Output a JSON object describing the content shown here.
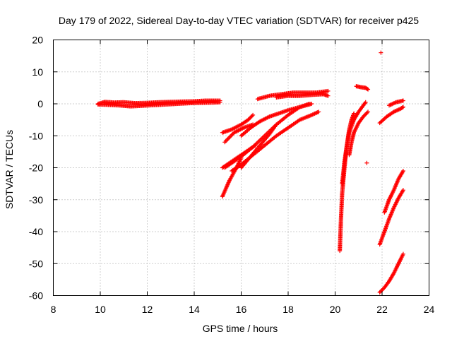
{
  "chart_data": {
    "type": "scatter",
    "title": "Day 179 of 2022, Sidereal Day-to-day VTEC variation (SDTVAR) for receiver p425",
    "xlabel": "GPS time / hours",
    "ylabel": "SDTVAR / TECUs",
    "xlim": [
      8,
      24
    ],
    "ylim": [
      -60,
      20
    ],
    "x_ticks": [
      8,
      10,
      12,
      14,
      16,
      18,
      20,
      22,
      24
    ],
    "y_ticks": [
      -60,
      -50,
      -40,
      -30,
      -20,
      -10,
      0,
      10,
      20
    ],
    "x_tick_labels": [
      "8",
      "10",
      "12",
      "14",
      "16",
      "18",
      "20",
      "22",
      "24"
    ],
    "y_tick_labels": [
      "-60",
      "-50",
      "-40",
      "-30",
      "-20",
      "-10",
      "0",
      "10",
      "20"
    ],
    "grid": true,
    "marker": "+",
    "color": "#ff0000",
    "series": [
      {
        "x": [
          9.9,
          10.2,
          10.6,
          11.0,
          11.5,
          12.0,
          12.5,
          13.0,
          13.5,
          14.0,
          14.5,
          15.1
        ],
        "y": [
          0.0,
          0.6,
          0.4,
          0.5,
          0.2,
          0.3,
          0.5,
          0.6,
          0.7,
          0.8,
          1.0,
          1.0
        ]
      },
      {
        "x": [
          9.9,
          10.3,
          10.8,
          11.3,
          11.8,
          12.3,
          12.8,
          13.3,
          13.8,
          14.3,
          14.8,
          15.1
        ],
        "y": [
          -0.2,
          -0.3,
          -0.5,
          -0.8,
          -0.6,
          -0.4,
          -0.2,
          0.0,
          0.2,
          0.3,
          0.4,
          0.5
        ]
      },
      {
        "x": [
          15.2,
          15.6,
          16.0,
          16.3,
          16.5
        ],
        "y": [
          -9.0,
          -8.0,
          -6.5,
          -5.0,
          -3.5
        ]
      },
      {
        "x": [
          15.2,
          15.6,
          16.0,
          16.3,
          16.6
        ],
        "y": [
          -20.0,
          -18.0,
          -16.0,
          -14.5,
          -13.0
        ]
      },
      {
        "x": [
          15.2,
          15.5,
          15.8,
          16.0
        ],
        "y": [
          -29.0,
          -24.0,
          -20.0,
          -17.0
        ]
      },
      {
        "x": [
          15.3,
          15.6,
          16.0,
          16.5,
          17.0,
          17.5,
          18.0,
          18.5,
          18.9
        ],
        "y": [
          -20.0,
          -18.5,
          -16.5,
          -13.5,
          -10.0,
          -6.5,
          -3.5,
          -1.0,
          0.0
        ]
      },
      {
        "x": [
          15.6,
          16.0,
          16.5,
          17.0,
          17.5,
          18.0,
          18.5,
          19.0,
          19.3
        ],
        "y": [
          -21.0,
          -19.0,
          -16.0,
          -13.0,
          -10.0,
          -7.5,
          -5.0,
          -3.5,
          -2.5
        ]
      },
      {
        "x": [
          16.0,
          16.4,
          16.8,
          17.2,
          17.6,
          18.0,
          18.5,
          19.0
        ],
        "y": [
          -10.0,
          -7.5,
          -5.5,
          -4.0,
          -3.0,
          -2.0,
          -1.0,
          0.0
        ]
      },
      {
        "x": [
          16.0,
          16.4,
          16.8,
          17.2,
          17.5
        ],
        "y": [
          -20.0,
          -16.5,
          -13.0,
          -9.5,
          -6.5
        ]
      },
      {
        "x": [
          15.3,
          15.7,
          16.1,
          16.5
        ],
        "y": [
          -12.0,
          -9.0,
          -7.5,
          -6.5
        ]
      },
      {
        "x": [
          16.7,
          17.2,
          17.7,
          18.2,
          18.7,
          19.2,
          19.7
        ],
        "y": [
          1.5,
          2.5,
          3.0,
          3.5,
          3.5,
          3.5,
          4.0
        ]
      },
      {
        "x": [
          17.5,
          18.0,
          18.5,
          19.0,
          19.5,
          19.7
        ],
        "y": [
          2.0,
          2.5,
          2.5,
          2.8,
          3.0,
          2.5
        ]
      },
      {
        "x": [
          20.2,
          20.25,
          20.3,
          20.4,
          20.5,
          20.6,
          20.7,
          20.8
        ],
        "y": [
          -46.0,
          -36.0,
          -28.0,
          -20.0,
          -13.0,
          -8.0,
          -5.0,
          -3.0
        ]
      },
      {
        "x": [
          20.3,
          20.4,
          20.5,
          20.6,
          20.8,
          21.0,
          21.2,
          21.3
        ],
        "y": [
          -25.0,
          -18.0,
          -13.0,
          -9.0,
          -5.0,
          -2.5,
          -0.5,
          0.5
        ]
      },
      {
        "x": [
          20.6,
          20.7,
          20.8,
          21.0,
          21.2,
          21.4
        ],
        "y": [
          -16.0,
          -12.0,
          -9.0,
          -6.0,
          -4.0,
          -2.5
        ]
      },
      {
        "x": [
          20.9,
          21.1,
          21.3,
          21.4
        ],
        "y": [
          5.5,
          5.2,
          5.0,
          4.5
        ]
      },
      {
        "x": [
          21.35
        ],
        "y": [
          -18.5
        ]
      },
      {
        "x": [
          21.95
        ],
        "y": [
          16.0
        ]
      },
      {
        "x": [
          21.9,
          22.2,
          22.5,
          22.8,
          22.9
        ],
        "y": [
          -6.0,
          -4.0,
          -2.5,
          -1.5,
          -1.0
        ]
      },
      {
        "x": [
          22.3,
          22.6,
          22.9
        ],
        "y": [
          -0.5,
          0.5,
          1.0
        ]
      },
      {
        "x": [
          22.1,
          22.3,
          22.5,
          22.7,
          22.9
        ],
        "y": [
          -34.0,
          -30.0,
          -27.0,
          -23.5,
          -21.0
        ]
      },
      {
        "x": [
          21.9,
          22.1,
          22.3,
          22.5,
          22.7,
          22.9
        ],
        "y": [
          -44.0,
          -40.0,
          -36.0,
          -32.5,
          -29.5,
          -27.0
        ]
      },
      {
        "x": [
          21.9,
          22.1,
          22.3,
          22.5,
          22.7,
          22.9
        ],
        "y": [
          -59.0,
          -57.5,
          -55.5,
          -53.0,
          -50.0,
          -47.0
        ]
      }
    ]
  }
}
